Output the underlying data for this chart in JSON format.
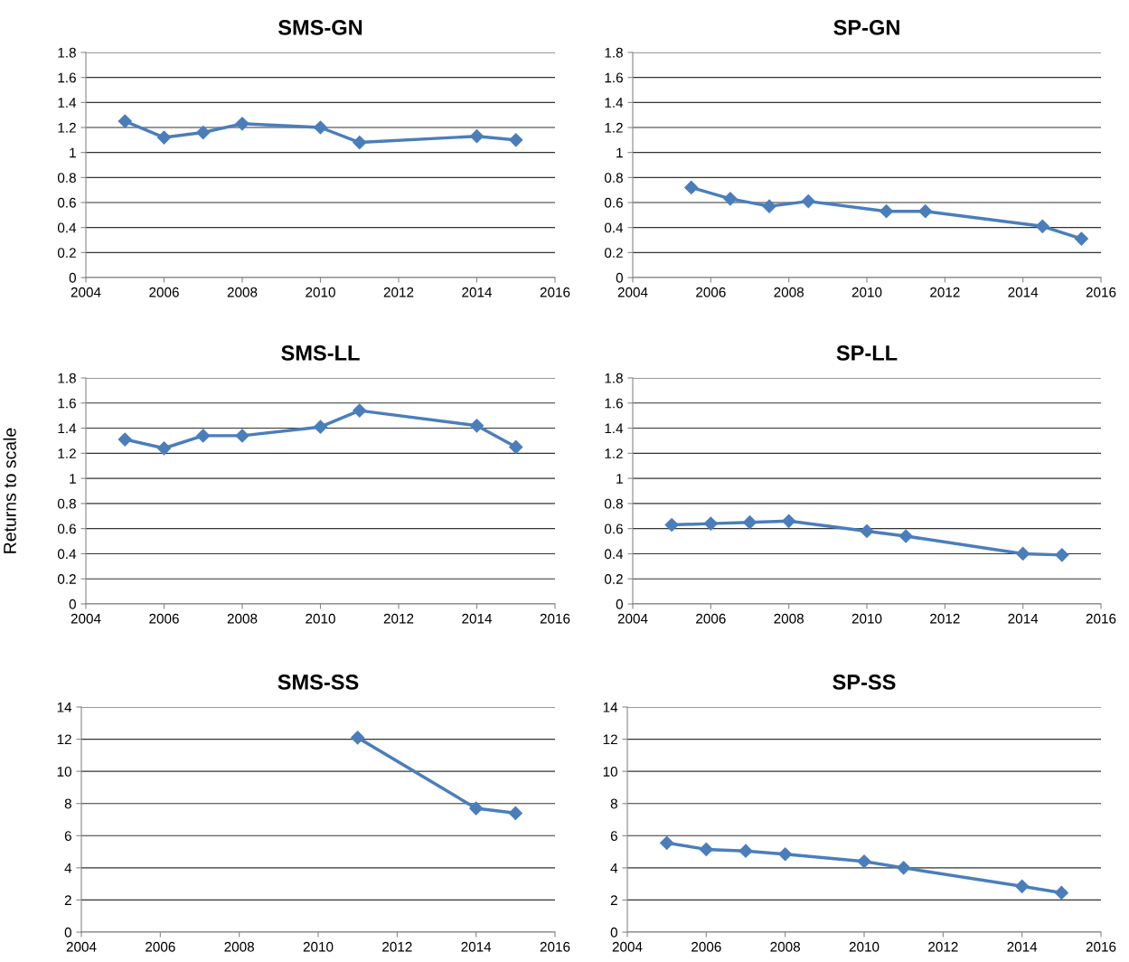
{
  "chart_data": [
    {
      "type": "line",
      "title": "SMS-GN",
      "x": [
        2005,
        2006,
        2007,
        2008,
        2010,
        2011,
        2014,
        2015
      ],
      "series": [
        {
          "color": "#4a7ebb",
          "values": [
            1.25,
            1.12,
            1.16,
            1.23,
            1.2,
            1.08,
            1.13,
            1.1
          ]
        }
      ],
      "xlim": [
        2004,
        2016
      ],
      "xticks": [
        2004,
        2006,
        2008,
        2010,
        2012,
        2014,
        2016
      ],
      "ylim": [
        0,
        1.8
      ],
      "yticks": [
        0,
        0.2,
        0.4,
        0.6,
        0.8,
        1,
        1.2,
        1.4,
        1.6,
        1.8
      ],
      "grid": "y",
      "marker": "diamond",
      "line_style": "solid"
    },
    {
      "type": "line",
      "title": "SP-GN",
      "x": [
        2005.5,
        2006.5,
        2007.5,
        2008.5,
        2010.5,
        2011.5,
        2014.5,
        2015.5
      ],
      "series": [
        {
          "color": "#4a7ebb",
          "values": [
            0.72,
            0.63,
            0.57,
            0.61,
            0.53,
            0.53,
            0.41,
            0.31
          ]
        }
      ],
      "xlim": [
        2004,
        2016
      ],
      "xticks": [
        2004,
        2006,
        2008,
        2010,
        2012,
        2014,
        2016
      ],
      "ylim": [
        0,
        1.8
      ],
      "yticks": [
        0,
        0.2,
        0.4,
        0.6,
        0.8,
        1,
        1.2,
        1.4,
        1.6,
        1.8
      ],
      "grid": "y",
      "marker": "diamond",
      "line_style": "solid"
    },
    {
      "type": "line",
      "title": "SMS-LL",
      "ylabel": "Returns to scale",
      "x": [
        2005,
        2006,
        2007,
        2008,
        2010,
        2011,
        2014,
        2015
      ],
      "series": [
        {
          "color": "#4a7ebb",
          "values": [
            1.31,
            1.24,
            1.34,
            1.34,
            1.41,
            1.54,
            1.42,
            1.25
          ]
        }
      ],
      "xlim": [
        2004,
        2016
      ],
      "xticks": [
        2004,
        2006,
        2008,
        2010,
        2012,
        2014,
        2016
      ],
      "ylim": [
        0,
        1.8
      ],
      "yticks": [
        0,
        0.2,
        0.4,
        0.6,
        0.8,
        1,
        1.2,
        1.4,
        1.6,
        1.8
      ],
      "grid": "y",
      "marker": "diamond",
      "line_style": "solid"
    },
    {
      "type": "line",
      "title": "SP-LL",
      "x": [
        2005,
        2006,
        2007,
        2008,
        2010,
        2011,
        2014,
        2015
      ],
      "series": [
        {
          "color": "#4a7ebb",
          "values": [
            0.63,
            0.64,
            0.65,
            0.66,
            0.58,
            0.54,
            0.4,
            0.39
          ]
        }
      ],
      "xlim": [
        2004,
        2016
      ],
      "xticks": [
        2004,
        2006,
        2008,
        2010,
        2012,
        2014,
        2016
      ],
      "ylim": [
        0,
        1.8
      ],
      "yticks": [
        0,
        0.2,
        0.4,
        0.6,
        0.8,
        1,
        1.2,
        1.4,
        1.6,
        1.8
      ],
      "grid": "y",
      "marker": "diamond",
      "line_style": "solid"
    },
    {
      "type": "line",
      "title": "SMS-SS",
      "x": [
        2011,
        2014,
        2015
      ],
      "series": [
        {
          "color": "#4a7ebb",
          "values": [
            12.1,
            7.7,
            7.4
          ]
        }
      ],
      "xlim": [
        2004,
        2016
      ],
      "xticks": [
        2004,
        2006,
        2008,
        2010,
        2012,
        2014,
        2016
      ],
      "ylim": [
        0,
        14
      ],
      "yticks": [
        0,
        2,
        4,
        6,
        8,
        10,
        12,
        14
      ],
      "grid": "y",
      "marker": "diamond",
      "line_style": "solid"
    },
    {
      "type": "line",
      "title": "SP-SS",
      "x": [
        2005,
        2006,
        2007,
        2008,
        2010,
        2011,
        2014,
        2015
      ],
      "series": [
        {
          "color": "#4a7ebb",
          "values": [
            5.55,
            5.15,
            5.05,
            4.85,
            4.4,
            4.0,
            2.85,
            2.45
          ]
        }
      ],
      "xlim": [
        2004,
        2016
      ],
      "xticks": [
        2004,
        2006,
        2008,
        2010,
        2012,
        2014,
        2016
      ],
      "ylim": [
        0,
        14
      ],
      "yticks": [
        0,
        2,
        4,
        6,
        8,
        10,
        12,
        14
      ],
      "grid": "y",
      "marker": "diamond",
      "line_style": "solid"
    }
  ]
}
